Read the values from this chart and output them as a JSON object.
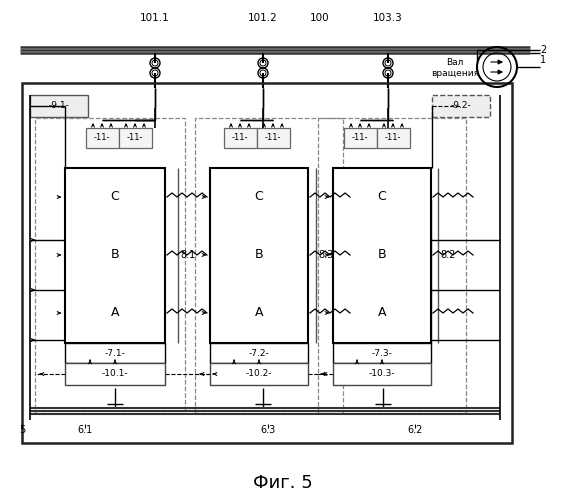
{
  "bg": "#ffffff",
  "lc": "#000000",
  "title": "Фиг. 5",
  "top_labels": [
    [
      "101.1",
      155
    ],
    [
      "101.2",
      263
    ],
    [
      "100",
      320
    ],
    [
      "103.3",
      388
    ]
  ],
  "bus_labels": [
    "8.1",
    "8.3",
    "8.2"
  ],
  "inv_labels": [
    "-7.1-",
    "-7.2-",
    "-7.3-"
  ],
  "ctrl_labels": [
    "-10.1-",
    "-10.2-",
    "-10.3-"
  ],
  "bot_labels": [
    [
      "5",
      22,
      462
    ],
    [
      "6.1",
      85,
      462
    ],
    [
      "6.3",
      268,
      462
    ],
    [
      "6.2",
      415,
      462
    ]
  ],
  "supply_labels": [
    "-9.1-",
    "-9.2-"
  ],
  "phase_labels": [
    "C",
    "B",
    "A"
  ],
  "val_text": "Вал\nвращения"
}
